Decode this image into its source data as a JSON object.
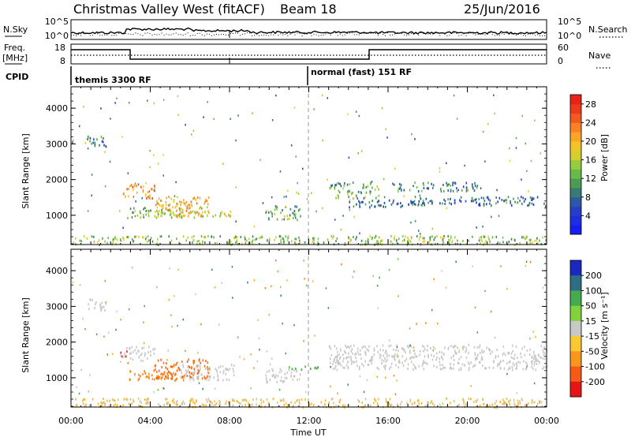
{
  "header": {
    "station": "Christmas Valley West (fitACF)",
    "beam": "Beam 18",
    "date": "25/Jun/2016"
  },
  "strips": {
    "nsky_label": "N.Sky",
    "nsearch_label": "N.Search",
    "nsky_ticks": [
      "10^5",
      "10^0"
    ],
    "freq_label": "Freq.",
    "freq_unit": "[MHz]",
    "freq_ticks": [
      "18",
      "8"
    ],
    "nave_ticks": [
      "60",
      "0"
    ],
    "nave_label": "Nave",
    "cpid_label": "CPID",
    "cpid_segments": [
      {
        "start_hour": 0,
        "name": "themis 3300 RF"
      },
      {
        "start_hour": 12,
        "name": "normal (fast) 151 RF"
      }
    ]
  },
  "chart_data": [
    {
      "type": "heatmap",
      "name": "power",
      "ylabel": "Slant Range [km]",
      "ylim": [
        180,
        4600
      ],
      "yticks": [
        1000,
        2000,
        3000,
        4000
      ],
      "xlim": [
        0,
        24
      ],
      "colorbar": {
        "label": "Power [dB]",
        "ticks": [
          4,
          8,
          12,
          16,
          20,
          24,
          28
        ],
        "range": [
          0,
          30
        ]
      },
      "regions": [
        {
          "t0": 0.8,
          "t1": 1.8,
          "r0": 2900,
          "r1": 3250,
          "level": 10
        },
        {
          "t0": 2.6,
          "t1": 4.2,
          "r0": 1500,
          "r1": 1900,
          "level": 22
        },
        {
          "t0": 2.8,
          "t1": 5.8,
          "r0": 950,
          "r1": 1250,
          "level": 14
        },
        {
          "t0": 4.2,
          "t1": 7.0,
          "r0": 1000,
          "r1": 1550,
          "level": 20
        },
        {
          "t0": 5.0,
          "t1": 8.2,
          "r0": 950,
          "r1": 1150,
          "level": 18
        },
        {
          "t0": 9.8,
          "t1": 11.6,
          "r0": 900,
          "r1": 1300,
          "level": 12
        },
        {
          "t0": 13.0,
          "t1": 15.5,
          "r0": 1500,
          "r1": 1950,
          "level": 12
        },
        {
          "t0": 14.0,
          "t1": 18.0,
          "r0": 1250,
          "r1": 1450,
          "level": 8
        },
        {
          "t0": 16.0,
          "t1": 20.5,
          "r0": 1700,
          "r1": 1950,
          "level": 10
        },
        {
          "t0": 17.0,
          "t1": 24.0,
          "r0": 1300,
          "r1": 1550,
          "level": 8
        },
        {
          "t0": 0.0,
          "t1": 24.0,
          "r0": 200,
          "r1": 450,
          "level": 14
        }
      ]
    },
    {
      "type": "heatmap",
      "name": "velocity",
      "ylabel": "Slant Range [km]",
      "xlabel": "Time UT",
      "ylim": [
        180,
        4600
      ],
      "yticks": [
        1000,
        2000,
        3000,
        4000
      ],
      "xlim": [
        0,
        24
      ],
      "xtick_labels": [
        "00:00",
        "04:00",
        "08:00",
        "12:00",
        "16:00",
        "20:00",
        "00:00"
      ],
      "colorbar": {
        "label": "Velocity [m s⁻¹]",
        "ticks": [
          "200",
          "100",
          "50",
          "15",
          "-15",
          "-50",
          "-100",
          "-200"
        ]
      },
      "regions": [
        {
          "t0": 0.8,
          "t1": 1.8,
          "r0": 2900,
          "r1": 3250,
          "v": 0
        },
        {
          "t0": 2.6,
          "t1": 4.2,
          "r0": 1500,
          "r1": 1900,
          "v": 0
        },
        {
          "t0": 2.4,
          "t1": 2.8,
          "r0": 1600,
          "r1": 1800,
          "v": -220
        },
        {
          "t0": 2.8,
          "t1": 5.8,
          "r0": 950,
          "r1": 1250,
          "v": -80
        },
        {
          "t0": 4.2,
          "t1": 7.0,
          "r0": 1000,
          "r1": 1550,
          "v": -110
        },
        {
          "t0": 5.5,
          "t1": 8.2,
          "r0": 950,
          "r1": 1400,
          "v": 0
        },
        {
          "t0": 9.8,
          "t1": 11.6,
          "r0": 900,
          "r1": 1300,
          "v": 0
        },
        {
          "t0": 10.8,
          "t1": 12.6,
          "r0": 1250,
          "r1": 1350,
          "v": 60
        },
        {
          "t0": 13.0,
          "t1": 24.0,
          "r0": 1250,
          "r1": 1950,
          "v": 0
        },
        {
          "t0": 0.0,
          "t1": 24.0,
          "r0": 200,
          "r1": 450,
          "v": -30
        }
      ]
    }
  ]
}
